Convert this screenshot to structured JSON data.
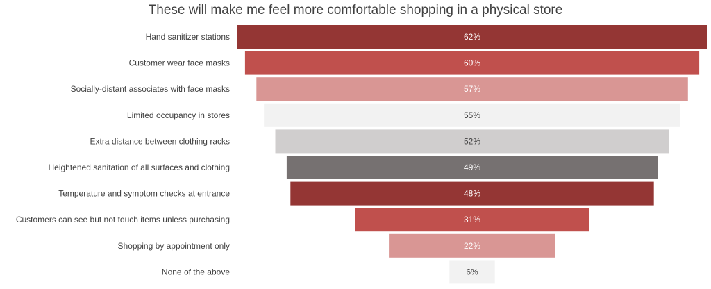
{
  "chart_data": {
    "type": "bar",
    "subtype": "funnel",
    "title": "These will make me feel more comfortable shopping in a physical store",
    "xlabel": "",
    "ylabel": "",
    "categories": [
      "Hand sanitizer stations",
      "Customer wear face masks",
      "Socially-distant associates with face masks",
      "Limited occupancy in stores",
      "Extra distance between clothing racks",
      "Heightened sanitation of all surfaces and clothing",
      "Temperature and symptom checks at entrance",
      "Customers can see but not touch items unless purchasing",
      "Shopping by appointment only",
      "None of the above"
    ],
    "values": [
      62,
      60,
      57,
      55,
      52,
      49,
      48,
      31,
      22,
      6
    ],
    "data_labels": [
      "62%",
      "60%",
      "57%",
      "55%",
      "52%",
      "49%",
      "48%",
      "31%",
      "22%",
      "6%"
    ],
    "colors": [
      "#943634",
      "#C0504D",
      "#D99694",
      "#F2F2F2",
      "#D0CECE",
      "#767171",
      "#943634",
      "#C0504D",
      "#D99694",
      "#F2F2F2"
    ],
    "label_colors": [
      "#ffffff",
      "#ffffff",
      "#ffffff",
      "#404040",
      "#404040",
      "#ffffff",
      "#ffffff",
      "#ffffff",
      "#ffffff",
      "#404040"
    ],
    "xlim": [
      0,
      62
    ],
    "grid": false,
    "legend": "none"
  }
}
